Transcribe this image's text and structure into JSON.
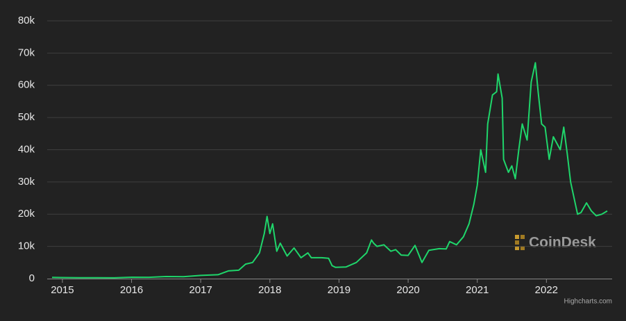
{
  "chart_data": {
    "type": "line",
    "watermark": "CoinDesk",
    "credits": "Highcharts.com",
    "xlim": [
      2014.78,
      2022.95
    ],
    "xticks": [
      2015,
      2016,
      2017,
      2018,
      2019,
      2020,
      2021,
      2022
    ],
    "ylim": [
      0,
      80000
    ],
    "yticks": [
      0,
      {
        "value": 10000,
        "label": "10k"
      },
      {
        "value": 20000,
        "label": "20k"
      },
      {
        "value": 30000,
        "label": "30k"
      },
      {
        "value": 40000,
        "label": "40k"
      },
      {
        "value": 50000,
        "label": "50k"
      },
      {
        "value": 60000,
        "label": "60k"
      },
      {
        "value": 70000,
        "label": "70k"
      },
      {
        "value": 80000,
        "label": "80k"
      }
    ],
    "grid": true,
    "series": [
      {
        "color": "#1fd66b",
        "x": [
          2014.85,
          2015.0,
          2015.25,
          2015.5,
          2015.75,
          2016.0,
          2016.25,
          2016.5,
          2016.75,
          2017.0,
          2017.25,
          2017.4,
          2017.55,
          2017.65,
          2017.75,
          2017.85,
          2017.92,
          2017.96,
          2018.0,
          2018.04,
          2018.1,
          2018.15,
          2018.25,
          2018.35,
          2018.45,
          2018.55,
          2018.6,
          2018.75,
          2018.85,
          2018.9,
          2018.95,
          2019.1,
          2019.25,
          2019.4,
          2019.47,
          2019.5,
          2019.55,
          2019.65,
          2019.75,
          2019.82,
          2019.9,
          2020.0,
          2020.1,
          2020.2,
          2020.3,
          2020.45,
          2020.55,
          2020.6,
          2020.7,
          2020.8,
          2020.88,
          2020.95,
          2021.0,
          2021.05,
          2021.12,
          2021.15,
          2021.22,
          2021.28,
          2021.3,
          2021.36,
          2021.38,
          2021.45,
          2021.5,
          2021.55,
          2021.6,
          2021.65,
          2021.72,
          2021.78,
          2021.84,
          2021.88,
          2021.93,
          2021.98,
          2022.04,
          2022.1,
          2022.2,
          2022.25,
          2022.3,
          2022.35,
          2022.45,
          2022.5,
          2022.58,
          2022.65,
          2022.72,
          2022.8,
          2022.88
        ],
        "values": [
          380,
          320,
          250,
          260,
          240,
          430,
          420,
          650,
          610,
          1000,
          1200,
          2400,
          2600,
          4500,
          5000,
          8000,
          14000,
          19300,
          14000,
          17000,
          8500,
          11000,
          7000,
          9500,
          6500,
          8000,
          6500,
          6500,
          6300,
          4000,
          3500,
          3600,
          5000,
          8000,
          12000,
          11000,
          10000,
          10500,
          8500,
          9000,
          7300,
          7200,
          10300,
          5000,
          8800,
          9300,
          9200,
          11500,
          10500,
          13000,
          17000,
          23000,
          29000,
          40000,
          33000,
          48000,
          57000,
          58000,
          63500,
          56000,
          37000,
          33000,
          35000,
          31000,
          40000,
          48000,
          43000,
          61000,
          67000,
          58000,
          48000,
          47000,
          37000,
          44000,
          40000,
          47000,
          39000,
          30000,
          20000,
          20500,
          23500,
          21000,
          19500,
          20000,
          21000
        ]
      }
    ]
  }
}
